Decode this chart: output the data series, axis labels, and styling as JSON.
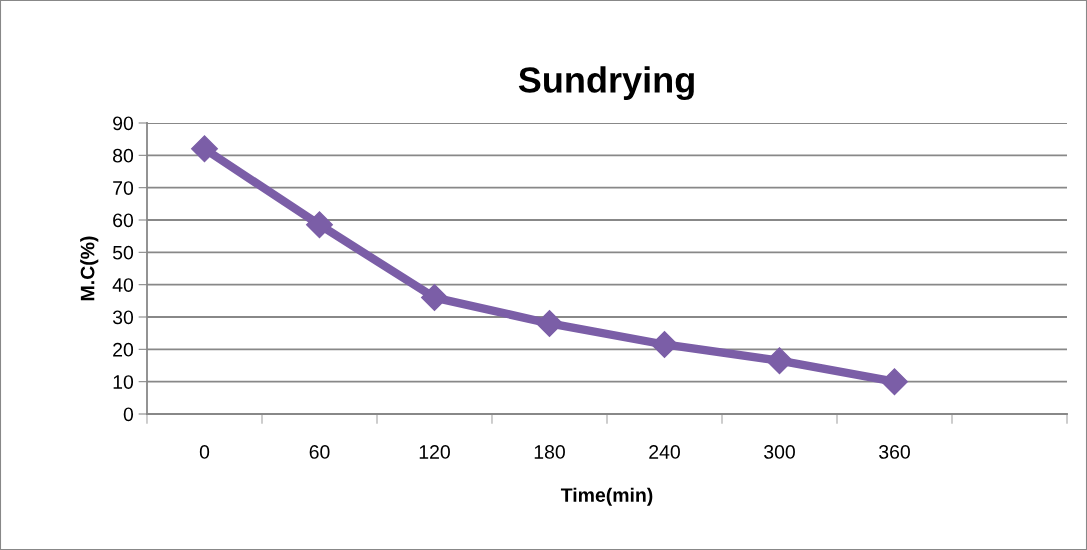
{
  "chart_data": {
    "type": "line",
    "title": "Sundrying",
    "xlabel": "Time(min)",
    "ylabel": "M.C(%)",
    "categories": [
      "0",
      "60",
      "120",
      "180",
      "240",
      "300",
      "360",
      null
    ],
    "series": [
      {
        "color": "#7b5ea7",
        "values": [
          82,
          58.5,
          36,
          28,
          21.5,
          16.5,
          10,
          null
        ]
      }
    ],
    "ylim": [
      0,
      90
    ],
    "yticks": [
      0,
      10,
      20,
      30,
      40,
      50,
      60,
      70,
      80,
      90
    ],
    "grid": "y",
    "marker": "diamond",
    "line_style": "solid"
  }
}
